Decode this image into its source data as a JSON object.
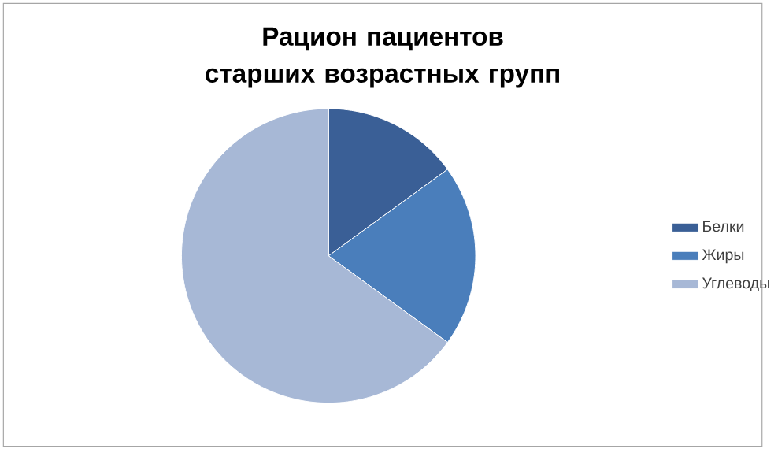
{
  "chart_data": {
    "type": "pie",
    "title": "Рацион пациентов старших возрастных групп",
    "categories": [
      "Белки",
      "Жиры",
      "Углеводы"
    ],
    "values": [
      15,
      20,
      65
    ],
    "colors": [
      "#3a5f96",
      "#4a7ebb",
      "#a7b8d6"
    ],
    "legend": "right"
  }
}
